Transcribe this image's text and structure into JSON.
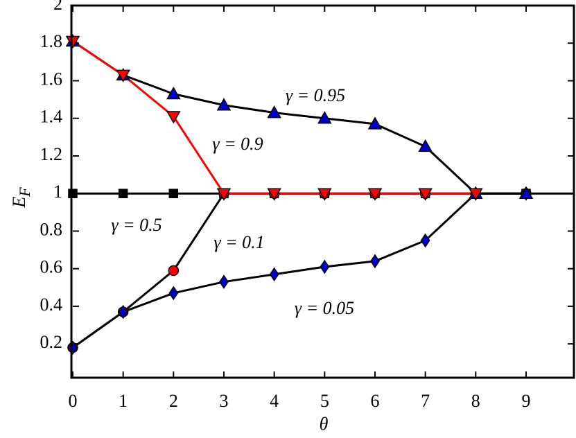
{
  "chart_data": {
    "type": "line",
    "x": [
      0,
      1,
      2,
      3,
      4,
      5,
      6,
      7,
      8,
      9
    ],
    "xlabel": "θ",
    "ylabel": {
      "text": "E",
      "subscript": "F"
    },
    "xlim": [
      0,
      9.95
    ],
    "xticks": [
      0,
      1,
      2,
      3,
      4,
      5,
      6,
      7,
      8,
      9
    ],
    "ylim": [
      0.02,
      2
    ],
    "yticks": [
      0.2,
      0.4,
      0.6,
      0.8,
      1,
      1.2,
      1.4,
      1.6,
      1.8,
      2
    ],
    "grid": false,
    "series": [
      {
        "name": "γ = 0.5",
        "color": "#000000",
        "marker": "square",
        "marker_color": "#000000",
        "values": [
          1,
          1,
          1,
          1,
          1,
          1,
          1,
          1,
          1,
          1
        ]
      },
      {
        "name": "γ = 0.1",
        "color": "#000000",
        "marker": "circle",
        "marker_color": "#ff0000",
        "values": [
          0.18,
          0.37,
          0.59,
          1,
          1,
          1,
          1,
          1,
          1,
          1
        ]
      },
      {
        "name": "γ = 0.05",
        "color": "#000000",
        "marker": "diamond",
        "marker_color": "#0000cd",
        "values": [
          0.18,
          0.37,
          0.47,
          0.53,
          0.57,
          0.61,
          0.64,
          0.75,
          1,
          1
        ]
      },
      {
        "name": "γ = 0.95",
        "color": "#000000",
        "marker": "triangle-up",
        "marker_color": "#0000cd",
        "values": [
          1.81,
          1.63,
          1.53,
          1.47,
          1.43,
          1.4,
          1.37,
          1.25,
          1,
          1
        ]
      },
      {
        "name": "γ = 0.9",
        "color": "#ff0000",
        "marker": "triangle-down",
        "marker_color": "#ff0000",
        "values": [
          1.81,
          1.63,
          1.41,
          1,
          1,
          1,
          1,
          1,
          1,
          null
        ]
      }
    ]
  }
}
